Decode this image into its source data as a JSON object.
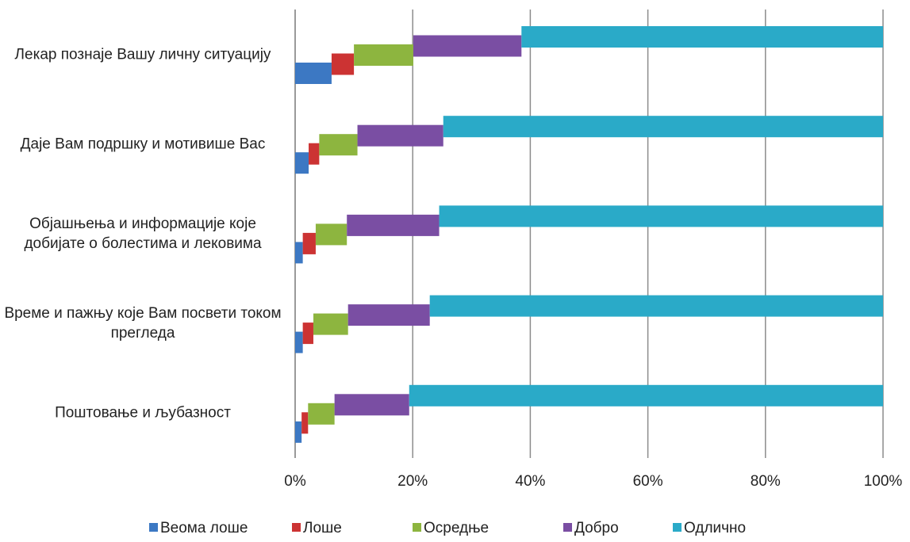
{
  "chart_data": {
    "type": "bar",
    "categories": [
      "Лекар познаје Вашу личну ситуацију",
      "Даје Вам подршку и мотивише Вас",
      "Објашњења и информације које добијате о болестима и лековима",
      "Време и пажњу које Вам посвети током прегледа",
      "Поштовање и љубазност"
    ],
    "series": [
      {
        "name": "Веома лоше",
        "color": "#3c78c3",
        "values": [
          6.2,
          2.3,
          1.3,
          1.3,
          1.1
        ]
      },
      {
        "name": "Лоше",
        "color": "#cc3333",
        "values": [
          3.8,
          1.8,
          2.2,
          1.8,
          1.1
        ]
      },
      {
        "name": "Осредње",
        "color": "#8db53f",
        "values": [
          10.1,
          6.5,
          5.3,
          5.9,
          4.5
        ]
      },
      {
        "name": "Добро",
        "color": "#7a4ea3",
        "values": [
          18.4,
          14.6,
          15.7,
          13.9,
          12.7
        ]
      },
      {
        "name": "Одлично",
        "color": "#2aaac8",
        "values": [
          61.5,
          74.8,
          75.5,
          77.1,
          80.6
        ]
      }
    ],
    "xlim": [
      0,
      100
    ],
    "xticks": [
      {
        "value": 0,
        "label": "0%"
      },
      {
        "value": 20,
        "label": "20%"
      },
      {
        "value": 40,
        "label": "40%"
      },
      {
        "value": 60,
        "label": "60%"
      },
      {
        "value": 80,
        "label": "80%"
      },
      {
        "value": 100,
        "label": "100%"
      }
    ],
    "grid": true,
    "legend": "bottom"
  }
}
